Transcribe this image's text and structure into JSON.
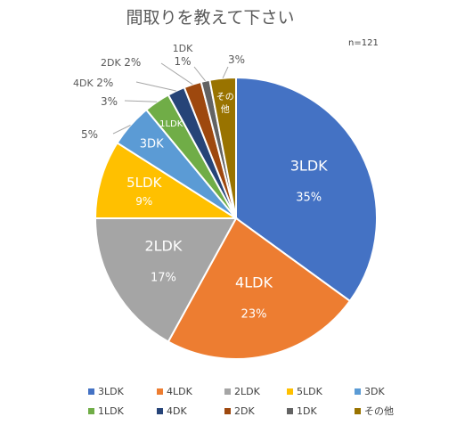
{
  "chart_data": {
    "type": "pie",
    "title": "間取りを教えて下さい",
    "note": "n=121",
    "categories": [
      "3LDK",
      "4LDK",
      "2LDK",
      "5LDK",
      "3DK",
      "1LDK",
      "4DK",
      "2DK",
      "1DK",
      "その他"
    ],
    "values": [
      35,
      23,
      17,
      9,
      5,
      3,
      2,
      2,
      1,
      3
    ],
    "value_labels": [
      "35%",
      "23%",
      "17%",
      "9%",
      "5%",
      "3%",
      "2%",
      "2%",
      "1%",
      "3%"
    ],
    "colors": [
      "#4472C4",
      "#ED7D31",
      "#A5A5A5",
      "#FFC000",
      "#5B9BD5",
      "#70AD47",
      "#264478",
      "#9E480E",
      "#636363",
      "#997300"
    ],
    "legend_position": "bottom",
    "legend": [
      "3LDK",
      "4LDK",
      "2LDK",
      "5LDK",
      "3DK",
      "1LDK",
      "4DK",
      "2DK",
      "1DK",
      "その他"
    ]
  }
}
